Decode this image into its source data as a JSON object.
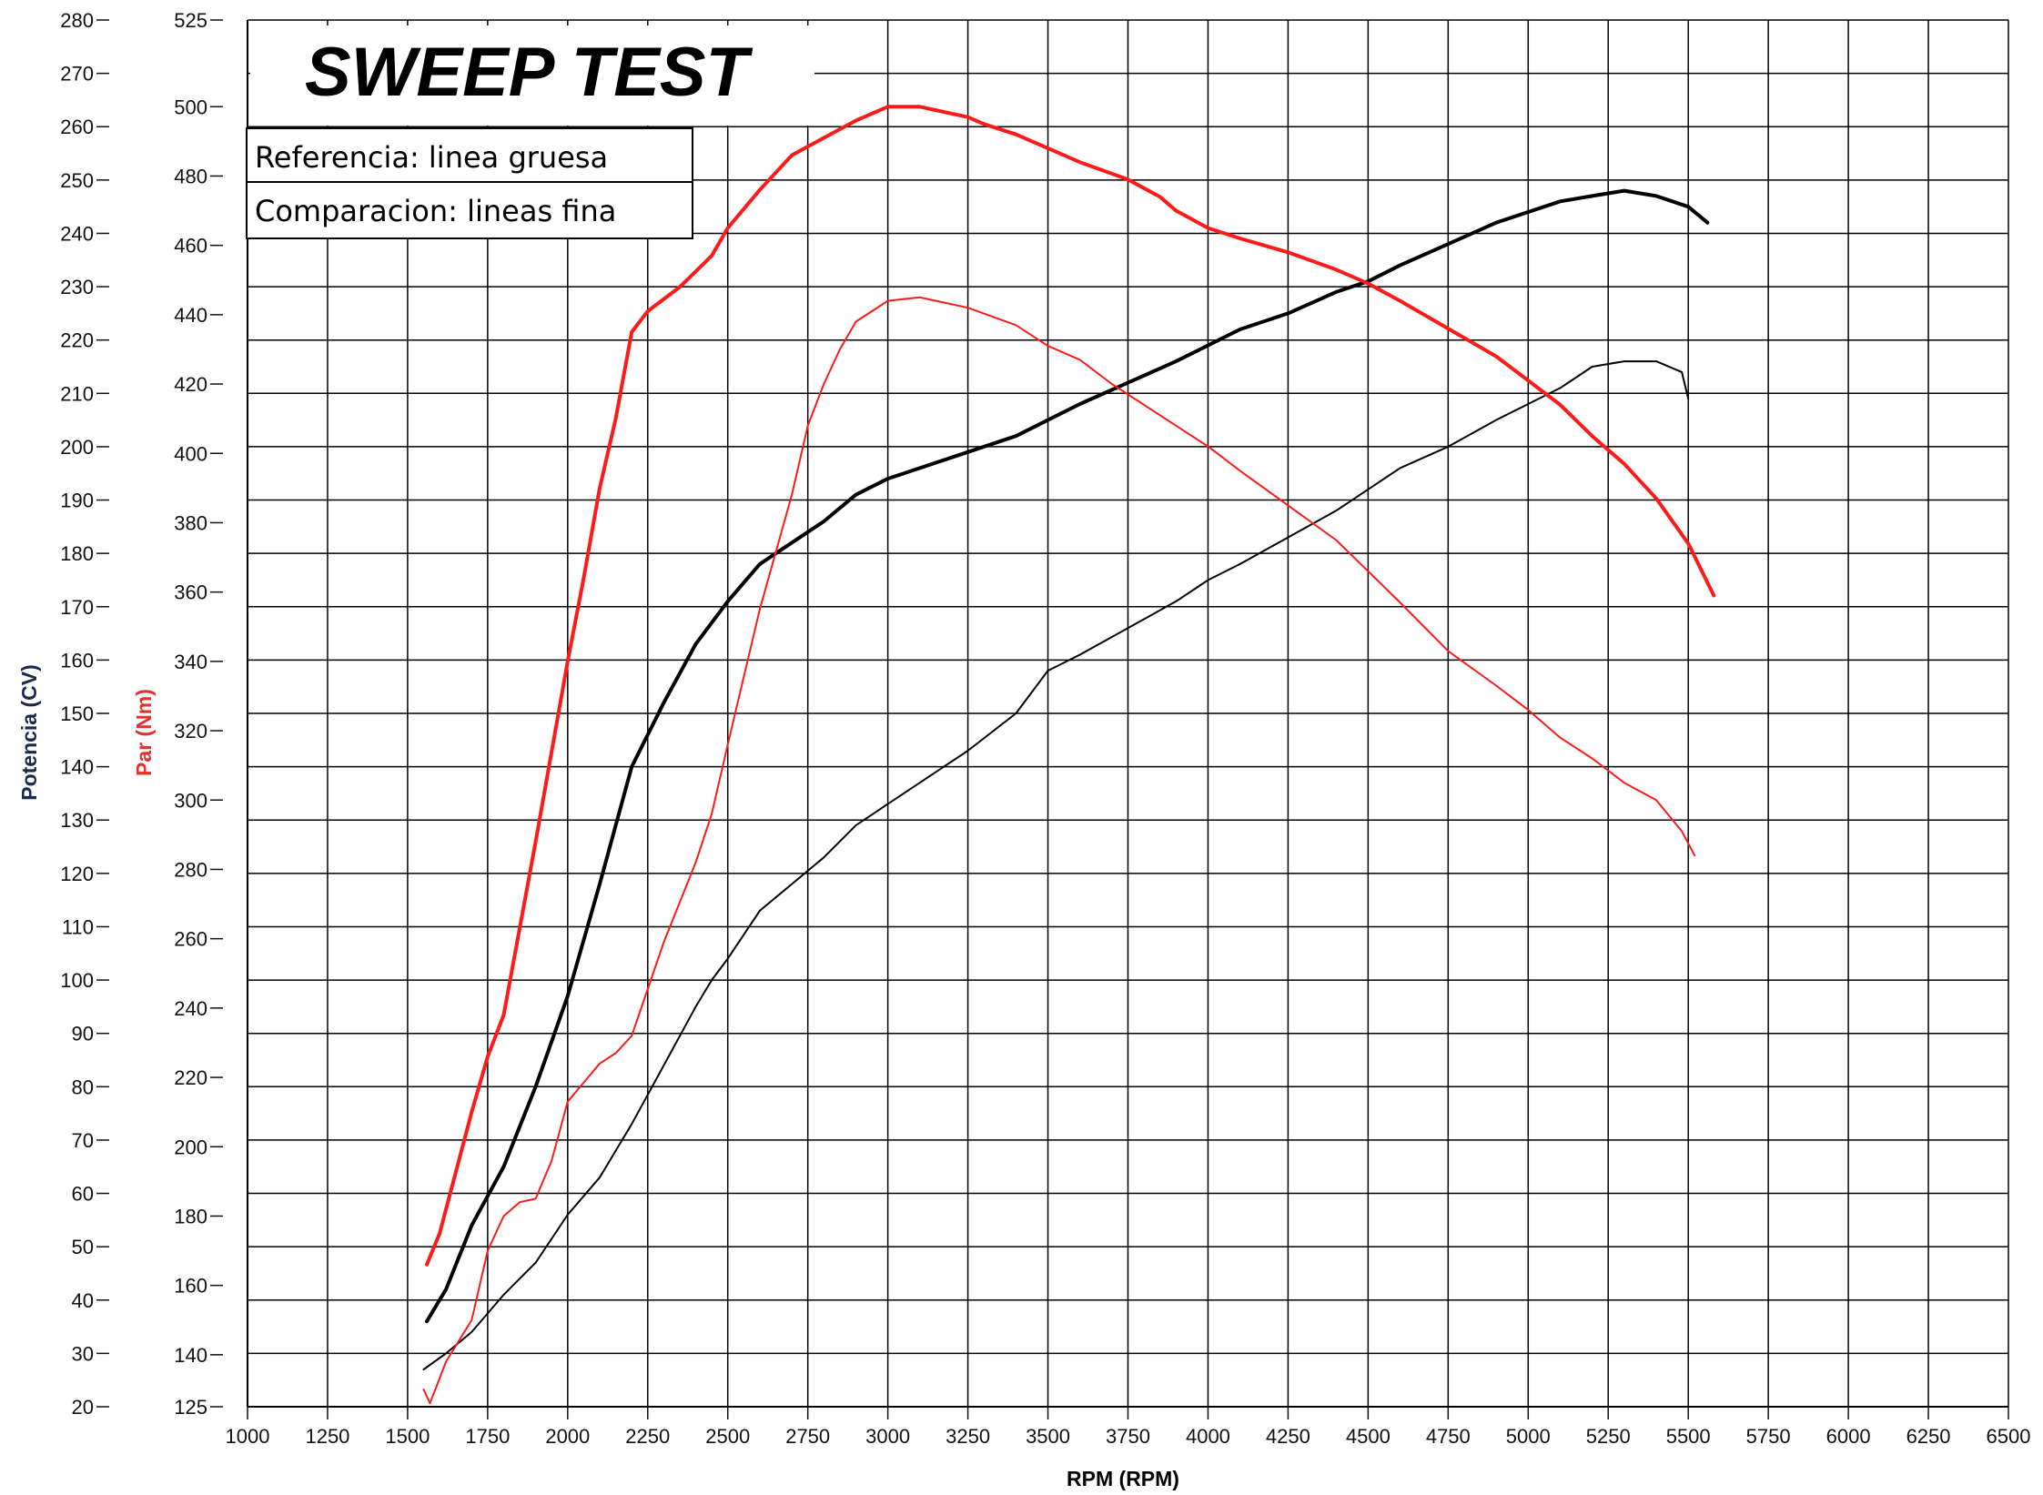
{
  "chart_data": {
    "type": "line",
    "title": "SWEEP TEST",
    "xlabel": "RPM (RPM)",
    "ylabel_left": "Potencia (CV)",
    "ylabel_right": "Par (Nm)",
    "xlim": [
      1000,
      6500
    ],
    "x_ticks": [
      1000,
      1250,
      1500,
      1750,
      2000,
      2250,
      2500,
      2750,
      3000,
      3250,
      3500,
      3750,
      4000,
      4250,
      4500,
      4750,
      5000,
      5250,
      5500,
      5750,
      6000,
      6250,
      6500
    ],
    "ylim_power": [
      20,
      280
    ],
    "power_ticks": [
      20,
      30,
      40,
      50,
      60,
      70,
      80,
      90,
      100,
      110,
      120,
      130,
      140,
      150,
      160,
      170,
      180,
      190,
      200,
      210,
      220,
      230,
      240,
      250,
      260,
      270,
      280
    ],
    "ylim_torque": [
      125,
      525
    ],
    "torque_ticks": [
      125,
      140,
      160,
      180,
      200,
      220,
      240,
      260,
      280,
      300,
      320,
      340,
      360,
      380,
      400,
      420,
      440,
      460,
      480,
      500,
      525
    ],
    "grid": true,
    "legend": {
      "position": "top-left",
      "entries": [
        "Referencia: linea gruesa",
        "Comparacion: lineas fina"
      ]
    },
    "colors": {
      "power": "#000000",
      "torque": "#ff1a1a",
      "grid": "#000000",
      "power_label": "#1a2a4a",
      "torque_label": "#e53030"
    },
    "series": [
      {
        "name": "Potencia (CV) — linea gruesa",
        "axis": "power",
        "weight": "thick",
        "color": "#000000",
        "x": [
          1560,
          1620,
          1700,
          1800,
          1900,
          2000,
          2100,
          2200,
          2300,
          2400,
          2500,
          2600,
          2700,
          2800,
          2900,
          3000,
          3100,
          3250,
          3400,
          3500,
          3600,
          3750,
          3900,
          4000,
          4100,
          4250,
          4400,
          4500,
          4600,
          4750,
          4900,
          5000,
          5100,
          5200,
          5300,
          5400,
          5500,
          5560
        ],
        "y": [
          36,
          42,
          54,
          65,
          80,
          97,
          118,
          140,
          152,
          163,
          171,
          178,
          182,
          186,
          191,
          194,
          196,
          199,
          202,
          205,
          208,
          212,
          216,
          219,
          222,
          225,
          229,
          231,
          234,
          238,
          242,
          244,
          246,
          247,
          248,
          247,
          245,
          242
        ]
      },
      {
        "name": "Potencia (CV) — linea fina",
        "axis": "power",
        "weight": "thin",
        "color": "#000000",
        "x": [
          1550,
          1620,
          1700,
          1800,
          1850,
          1900,
          2000,
          2100,
          2200,
          2300,
          2400,
          2450,
          2500,
          2600,
          2700,
          2800,
          2900,
          3000,
          3100,
          3250,
          3400,
          3500,
          3600,
          3750,
          3900,
          4000,
          4100,
          4250,
          4400,
          4500,
          4600,
          4750,
          4900,
          5000,
          5100,
          5200,
          5300,
          5400,
          5480,
          5500
        ],
        "y": [
          27,
          30,
          34,
          41,
          44,
          47,
          56,
          63,
          73,
          84,
          95,
          100,
          104,
          113,
          118,
          123,
          129,
          133,
          137,
          143,
          150,
          158,
          161,
          166,
          171,
          175,
          178,
          183,
          188,
          192,
          196,
          200,
          205,
          208,
          211,
          215,
          216,
          216,
          214,
          209
        ]
      },
      {
        "name": "Par (Nm) — linea gruesa",
        "axis": "torque",
        "weight": "thick",
        "color": "#ff1a1a",
        "x": [
          1560,
          1600,
          1700,
          1750,
          1800,
          1900,
          2000,
          2050,
          2100,
          2150,
          2200,
          2250,
          2350,
          2450,
          2500,
          2600,
          2700,
          2800,
          2900,
          3000,
          3100,
          3250,
          3300,
          3400,
          3600,
          3750,
          3850,
          3900,
          4000,
          4100,
          4250,
          4400,
          4500,
          4600,
          4750,
          4900,
          5000,
          5100,
          5200,
          5300,
          5400,
          5500,
          5580
        ],
        "y": [
          166,
          175,
          210,
          226,
          238,
          288,
          340,
          364,
          390,
          410,
          435,
          441,
          448,
          457,
          465,
          476,
          486,
          491,
          496,
          500,
          500,
          497,
          495,
          492,
          484,
          479,
          474,
          470,
          465,
          462,
          458,
          453,
          449,
          444,
          436,
          428,
          421,
          414,
          405,
          397,
          387,
          374,
          359
        ]
      },
      {
        "name": "Par (Nm) — linea fina",
        "axis": "torque",
        "weight": "thin",
        "color": "#ff1a1a",
        "x": [
          1550,
          1570,
          1620,
          1700,
          1750,
          1800,
          1850,
          1900,
          1950,
          2000,
          2100,
          2150,
          2200,
          2300,
          2400,
          2450,
          2500,
          2600,
          2700,
          2750,
          2800,
          2850,
          2900,
          3000,
          3100,
          3250,
          3400,
          3500,
          3600,
          3700,
          3800,
          3900,
          4000,
          4100,
          4250,
          4400,
          4500,
          4600,
          4750,
          4900,
          5000,
          5100,
          5200,
          5300,
          5400,
          5480,
          5520
        ],
        "y": [
          130,
          126,
          138,
          150,
          170,
          180,
          184,
          185,
          196,
          213,
          224,
          227,
          232,
          259,
          282,
          296,
          316,
          355,
          388,
          408,
          420,
          430,
          438,
          444,
          445,
          442,
          437,
          431,
          427,
          420,
          414,
          408,
          402,
          395,
          385,
          375,
          366,
          357,
          343,
          333,
          326,
          318,
          312,
          305,
          300,
          291,
          284
        ]
      }
    ]
  }
}
